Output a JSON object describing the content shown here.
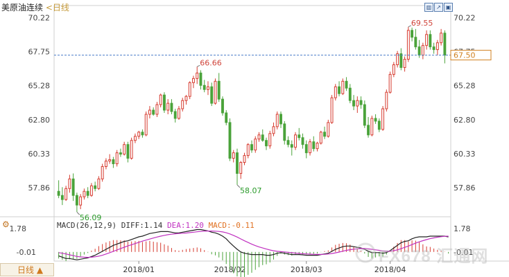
{
  "header": {
    "title": "美原油连续",
    "period_link": "<日线"
  },
  "toolbar": {
    "icons": [
      "chart-type-icon",
      "draw-tool-icon",
      "settings-icon"
    ]
  },
  "indicator": {
    "menu_label": "⚙",
    "macd_name": "MACD(26,12,9)",
    "diff_label": "DIFF:1.14",
    "dea_label": "DEA:1.20",
    "macd_label": "MACD:-0.11",
    "axis_top": "1.78",
    "axis_bottom": "-0.01"
  },
  "bottom": {
    "period_tab": "日线 ▲"
  },
  "watermark": {
    "text": "FX678 汇通网"
  },
  "colors": {
    "up": "#d63b2f",
    "down": "#4aa33a",
    "diff": "#222222",
    "dea": "#c030c0",
    "macd": "#e07020",
    "current": "#d08020",
    "ref_line": "#4a7dc9"
  },
  "chart_data": {
    "type": "candlestick",
    "title": "美原油连续",
    "yticks": [
      "70.22",
      "67.75",
      "65.28",
      "62.80",
      "60.33",
      "57.86"
    ],
    "ylim": [
      55.8,
      70.6
    ],
    "xticks": [
      "2018/01",
      "2018/02",
      "2018/03",
      "2018/04"
    ],
    "current_price": "67.50",
    "annotations": [
      {
        "label": "56.09",
        "kind": "low"
      },
      {
        "label": "66.66",
        "kind": "high"
      },
      {
        "label": "58.07",
        "kind": "low"
      },
      {
        "label": "69.55",
        "kind": "high"
      }
    ],
    "ohlc": [
      [
        57.6,
        58.4,
        57.1,
        57.3
      ],
      [
        57.3,
        57.9,
        56.6,
        57.0
      ],
      [
        57.0,
        58.0,
        56.9,
        57.8
      ],
      [
        57.8,
        58.8,
        57.5,
        58.5
      ],
      [
        58.5,
        58.9,
        56.9,
        57.3
      ],
      [
        57.3,
        57.5,
        56.1,
        56.6
      ],
      [
        56.6,
        57.4,
        56.3,
        57.2
      ],
      [
        57.2,
        57.8,
        57.0,
        57.6
      ],
      [
        57.6,
        57.9,
        57.1,
        57.3
      ],
      [
        57.3,
        58.2,
        57.2,
        58.0
      ],
      [
        58.0,
        58.3,
        57.6,
        57.8
      ],
      [
        57.8,
        58.7,
        57.7,
        58.5
      ],
      [
        58.5,
        59.6,
        58.3,
        59.4
      ],
      [
        59.4,
        60.0,
        59.2,
        59.8
      ],
      [
        59.8,
        60.3,
        59.6,
        59.9
      ],
      [
        59.9,
        60.1,
        59.3,
        59.6
      ],
      [
        59.6,
        60.6,
        59.4,
        60.4
      ],
      [
        60.4,
        60.7,
        60.1,
        60.3
      ],
      [
        60.3,
        61.2,
        60.2,
        61.0
      ],
      [
        61.0,
        61.2,
        59.7,
        60.0
      ],
      [
        60.0,
        61.5,
        59.9,
        61.3
      ],
      [
        61.3,
        61.8,
        61.1,
        61.6
      ],
      [
        61.6,
        62.0,
        61.4,
        61.9
      ],
      [
        61.9,
        62.1,
        61.5,
        61.7
      ],
      [
        61.7,
        63.4,
        61.6,
        63.2
      ],
      [
        63.2,
        63.8,
        62.9,
        63.5
      ],
      [
        63.5,
        63.7,
        63.1,
        63.2
      ],
      [
        63.2,
        64.1,
        63.0,
        63.9
      ],
      [
        63.9,
        64.7,
        63.7,
        64.6
      ],
      [
        64.6,
        64.8,
        63.3,
        63.5
      ],
      [
        63.5,
        64.3,
        63.2,
        64.0
      ],
      [
        64.0,
        64.3,
        63.2,
        63.4
      ],
      [
        63.4,
        63.6,
        62.6,
        62.9
      ],
      [
        62.9,
        63.8,
        62.8,
        63.6
      ],
      [
        63.6,
        64.4,
        63.4,
        64.2
      ],
      [
        64.2,
        64.6,
        63.9,
        64.5
      ],
      [
        64.5,
        65.6,
        64.3,
        65.5
      ],
      [
        65.5,
        66.0,
        65.1,
        65.8
      ],
      [
        65.8,
        66.66,
        65.4,
        66.2
      ],
      [
        66.2,
        66.4,
        65.0,
        65.3
      ],
      [
        65.3,
        65.7,
        64.8,
        65.0
      ],
      [
        65.0,
        65.6,
        64.6,
        65.2
      ],
      [
        65.2,
        65.5,
        63.8,
        64.0
      ],
      [
        64.0,
        65.8,
        63.9,
        65.6
      ],
      [
        65.6,
        66.2,
        64.1,
        64.3
      ],
      [
        64.3,
        64.5,
        63.1,
        63.3
      ],
      [
        63.3,
        63.5,
        62.4,
        62.6
      ],
      [
        62.6,
        62.9,
        59.8,
        60.0
      ],
      [
        60.0,
        60.6,
        59.7,
        60.4
      ],
      [
        60.4,
        60.7,
        58.07,
        58.9
      ],
      [
        58.9,
        59.8,
        58.5,
        59.7
      ],
      [
        59.7,
        60.4,
        59.5,
        60.2
      ],
      [
        60.2,
        61.1,
        60.0,
        61.0
      ],
      [
        61.0,
        61.3,
        60.4,
        60.6
      ],
      [
        60.6,
        61.6,
        60.4,
        61.4
      ],
      [
        61.4,
        61.9,
        61.2,
        61.7
      ],
      [
        61.7,
        62.1,
        61.2,
        61.3
      ],
      [
        61.3,
        61.5,
        60.6,
        60.9
      ],
      [
        60.9,
        62.0,
        60.7,
        61.8
      ],
      [
        61.8,
        62.6,
        61.6,
        62.3
      ],
      [
        62.3,
        63.4,
        62.1,
        63.2
      ],
      [
        63.2,
        63.4,
        62.2,
        62.5
      ],
      [
        62.5,
        62.7,
        61.0,
        61.3
      ],
      [
        61.3,
        61.6,
        60.8,
        61.0
      ],
      [
        61.0,
        61.3,
        60.2,
        60.8
      ],
      [
        60.8,
        61.9,
        60.6,
        61.7
      ],
      [
        61.7,
        62.2,
        61.3,
        61.5
      ],
      [
        61.5,
        61.8,
        60.7,
        61.0
      ],
      [
        61.0,
        61.3,
        60.0,
        60.4
      ],
      [
        60.4,
        61.4,
        60.2,
        61.2
      ],
      [
        61.2,
        61.6,
        60.5,
        60.7
      ],
      [
        60.7,
        61.2,
        60.5,
        61.1
      ],
      [
        61.1,
        62.0,
        61.0,
        61.9
      ],
      [
        61.9,
        62.3,
        61.4,
        61.6
      ],
      [
        61.6,
        62.8,
        61.5,
        62.6
      ],
      [
        62.6,
        64.6,
        62.5,
        64.4
      ],
      [
        64.4,
        65.4,
        64.2,
        65.2
      ],
      [
        65.2,
        65.6,
        64.5,
        64.7
      ],
      [
        64.7,
        65.8,
        64.6,
        65.6
      ],
      [
        65.6,
        65.9,
        64.9,
        65.1
      ],
      [
        65.1,
        65.4,
        64.0,
        64.2
      ],
      [
        64.2,
        64.6,
        63.5,
        63.8
      ],
      [
        63.8,
        64.5,
        63.3,
        64.2
      ],
      [
        64.2,
        64.5,
        63.6,
        63.9
      ],
      [
        63.9,
        64.2,
        62.2,
        62.4
      ],
      [
        62.4,
        63.0,
        61.5,
        61.7
      ],
      [
        61.7,
        63.1,
        61.6,
        62.9
      ],
      [
        62.9,
        63.2,
        62.5,
        62.7
      ],
      [
        62.7,
        62.9,
        61.9,
        62.1
      ],
      [
        62.1,
        63.8,
        62.0,
        63.6
      ],
      [
        63.6,
        65.0,
        63.4,
        64.8
      ],
      [
        64.8,
        66.3,
        64.7,
        66.1
      ],
      [
        66.1,
        67.0,
        65.9,
        66.8
      ],
      [
        66.8,
        67.8,
        66.6,
        67.6
      ],
      [
        67.6,
        68.0,
        66.4,
        66.6
      ],
      [
        66.6,
        67.4,
        66.3,
        67.2
      ],
      [
        67.2,
        69.55,
        67.0,
        69.3
      ],
      [
        69.3,
        69.5,
        68.5,
        68.8
      ],
      [
        68.8,
        69.4,
        67.9,
        68.1
      ],
      [
        68.1,
        68.6,
        67.3,
        67.5
      ],
      [
        67.5,
        68.4,
        67.2,
        68.2
      ],
      [
        68.2,
        69.3,
        67.9,
        69.0
      ],
      [
        69.0,
        69.3,
        67.9,
        68.1
      ],
      [
        68.1,
        68.4,
        67.6,
        67.9
      ],
      [
        67.9,
        68.6,
        67.5,
        68.4
      ],
      [
        68.4,
        69.4,
        68.2,
        69.1
      ],
      [
        69.1,
        69.3,
        66.9,
        67.5
      ]
    ],
    "macd": {
      "diff": [
        -0.3,
        -0.4,
        -0.5,
        -0.5,
        -0.55,
        -0.6,
        -0.55,
        -0.5,
        -0.45,
        -0.35,
        -0.25,
        -0.1,
        0.05,
        0.2,
        0.35,
        0.5,
        0.6,
        0.7,
        0.8,
        0.85,
        0.95,
        1.05,
        1.15,
        1.2,
        1.3,
        1.4,
        1.45,
        1.5,
        1.55,
        1.55,
        1.55,
        1.5,
        1.45,
        1.45,
        1.5,
        1.55,
        1.6,
        1.65,
        1.7,
        1.7,
        1.65,
        1.6,
        1.5,
        1.45,
        1.35,
        1.2,
        1.0,
        0.7,
        0.45,
        0.2,
        0.0,
        -0.1,
        -0.15,
        -0.2,
        -0.2,
        -0.2,
        -0.2,
        -0.25,
        -0.25,
        -0.2,
        -0.1,
        -0.05,
        -0.1,
        -0.15,
        -0.2,
        -0.2,
        -0.2,
        -0.22,
        -0.25,
        -0.25,
        -0.25,
        -0.25,
        -0.2,
        -0.15,
        -0.1,
        0.05,
        0.2,
        0.3,
        0.4,
        0.45,
        0.45,
        0.4,
        0.35,
        0.3,
        0.2,
        0.05,
        -0.05,
        -0.05,
        -0.05,
        -0.1,
        -0.05,
        0.1,
        0.3,
        0.5,
        0.7,
        0.8,
        0.85,
        1.0,
        1.1,
        1.15,
        1.15,
        1.15,
        1.2,
        1.2,
        1.2,
        1.2,
        1.2,
        1.14
      ],
      "dea": [
        -0.05,
        -0.1,
        -0.15,
        -0.22,
        -0.28,
        -0.34,
        -0.38,
        -0.4,
        -0.41,
        -0.4,
        -0.37,
        -0.32,
        -0.25,
        -0.16,
        -0.06,
        0.05,
        0.15,
        0.26,
        0.36,
        0.46,
        0.55,
        0.64,
        0.73,
        0.82,
        0.9,
        0.98,
        1.06,
        1.13,
        1.2,
        1.26,
        1.31,
        1.35,
        1.38,
        1.4,
        1.42,
        1.44,
        1.47,
        1.5,
        1.53,
        1.56,
        1.58,
        1.59,
        1.59,
        1.58,
        1.56,
        1.52,
        1.46,
        1.37,
        1.26,
        1.13,
        0.99,
        0.85,
        0.72,
        0.59,
        0.48,
        0.38,
        0.3,
        0.22,
        0.15,
        0.09,
        0.05,
        0.02,
        0.0,
        -0.03,
        -0.06,
        -0.09,
        -0.11,
        -0.13,
        -0.15,
        -0.17,
        -0.18,
        -0.19,
        -0.19,
        -0.18,
        -0.16,
        -0.12,
        -0.07,
        -0.01,
        0.06,
        0.12,
        0.17,
        0.21,
        0.24,
        0.26,
        0.26,
        0.24,
        0.2,
        0.16,
        0.12,
        0.08,
        0.05,
        0.06,
        0.1,
        0.16,
        0.25,
        0.35,
        0.45,
        0.56,
        0.67,
        0.77,
        0.86,
        0.94,
        1.01,
        1.07,
        1.12,
        1.16,
        1.19,
        1.2
      ]
    }
  }
}
